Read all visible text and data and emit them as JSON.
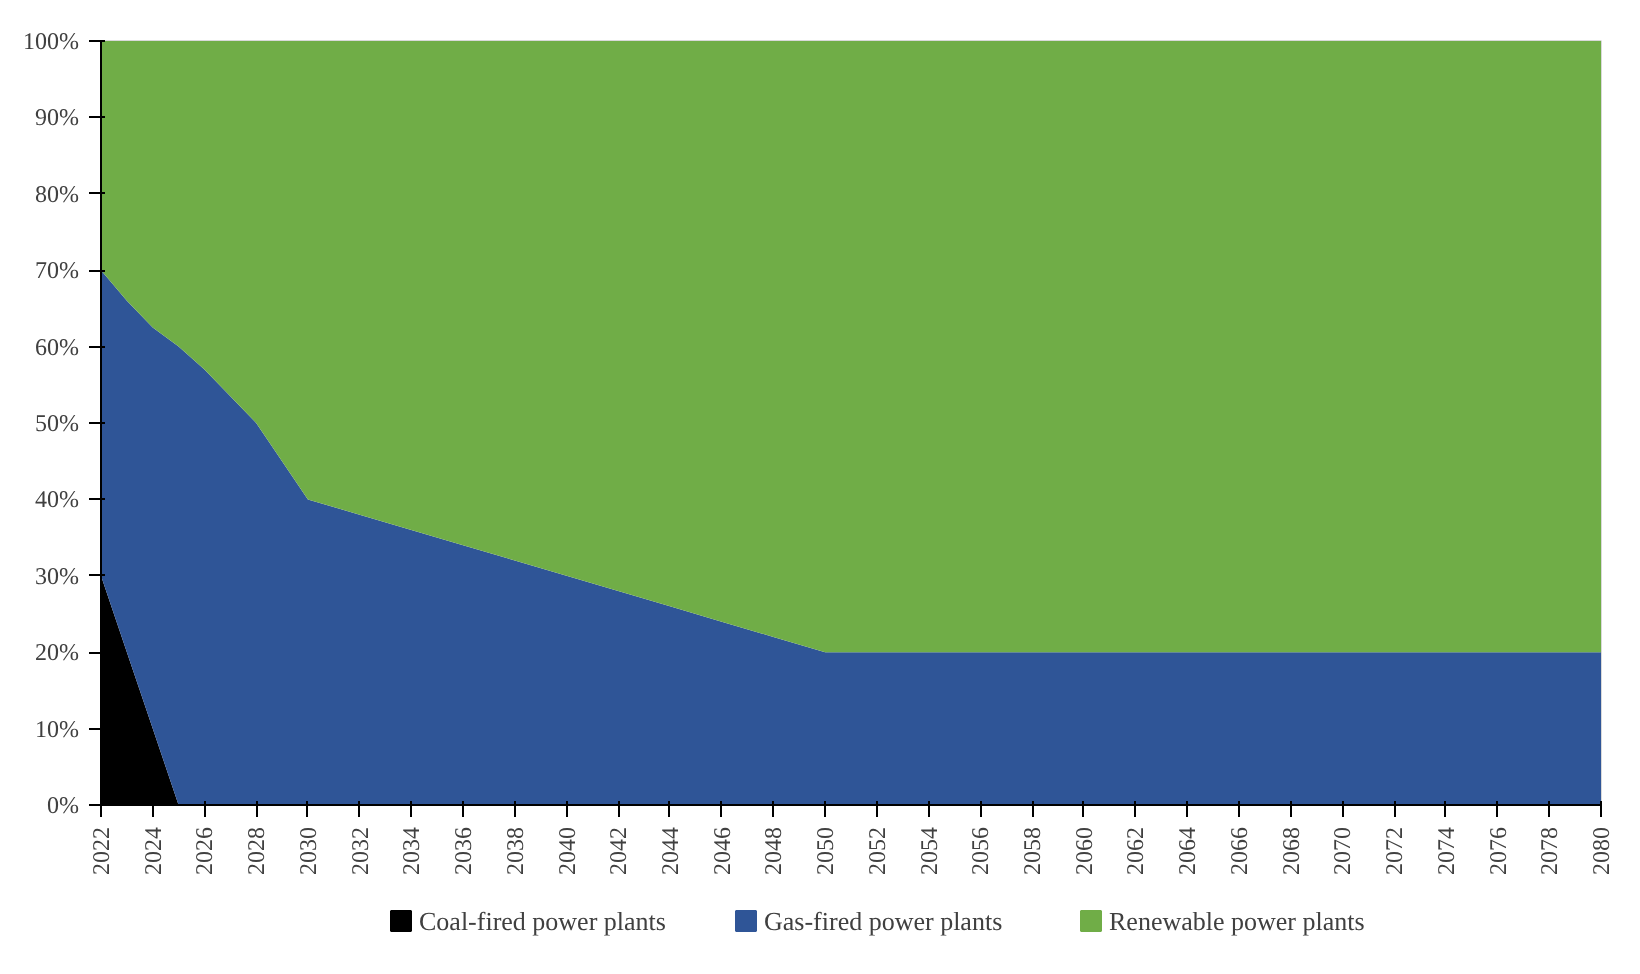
{
  "chart_data": {
    "type": "area",
    "stacked": true,
    "x": [
      2022,
      2023,
      2024,
      2025,
      2026,
      2028,
      2030,
      2032,
      2034,
      2036,
      2038,
      2040,
      2042,
      2044,
      2046,
      2048,
      2050,
      2080
    ],
    "series": [
      {
        "name": "Coal-fired power plants",
        "color": "#000000",
        "values": [
          30,
          20,
          10,
          0,
          0,
          0,
          0,
          0,
          0,
          0,
          0,
          0,
          0,
          0,
          0,
          0,
          0,
          0
        ]
      },
      {
        "name": "Gas-fired power plants",
        "color": "#2f5597",
        "values": [
          40,
          46,
          52.5,
          60,
          57,
          50,
          40,
          38,
          36,
          34,
          32,
          30,
          28,
          26,
          24,
          22,
          20,
          20
        ]
      },
      {
        "name": "Renewable power plants",
        "color": "#70ad47",
        "values": [
          30,
          34,
          37.5,
          40,
          43,
          50,
          60,
          62,
          64,
          66,
          68,
          70,
          72,
          74,
          76,
          78,
          80,
          80
        ]
      }
    ],
    "xlim": [
      2022,
      2080
    ],
    "xticks": [
      2022,
      2024,
      2026,
      2028,
      2030,
      2032,
      2034,
      2036,
      2038,
      2040,
      2042,
      2044,
      2046,
      2048,
      2050,
      2052,
      2054,
      2056,
      2058,
      2060,
      2062,
      2064,
      2066,
      2068,
      2070,
      2072,
      2074,
      2076,
      2078,
      2080
    ],
    "ylim": [
      0,
      100
    ],
    "yticks": [
      {
        "value": 0,
        "label": "0%"
      },
      {
        "value": 10,
        "label": "10%"
      },
      {
        "value": 20,
        "label": "20%"
      },
      {
        "value": 30,
        "label": "30%"
      },
      {
        "value": 40,
        "label": "40%"
      },
      {
        "value": 50,
        "label": "50%"
      },
      {
        "value": 60,
        "label": "60%"
      },
      {
        "value": 70,
        "label": "70%"
      },
      {
        "value": 80,
        "label": "80%"
      },
      {
        "value": 90,
        "label": "90%"
      },
      {
        "value": 100,
        "label": "100%"
      }
    ],
    "legend": "bottom"
  }
}
